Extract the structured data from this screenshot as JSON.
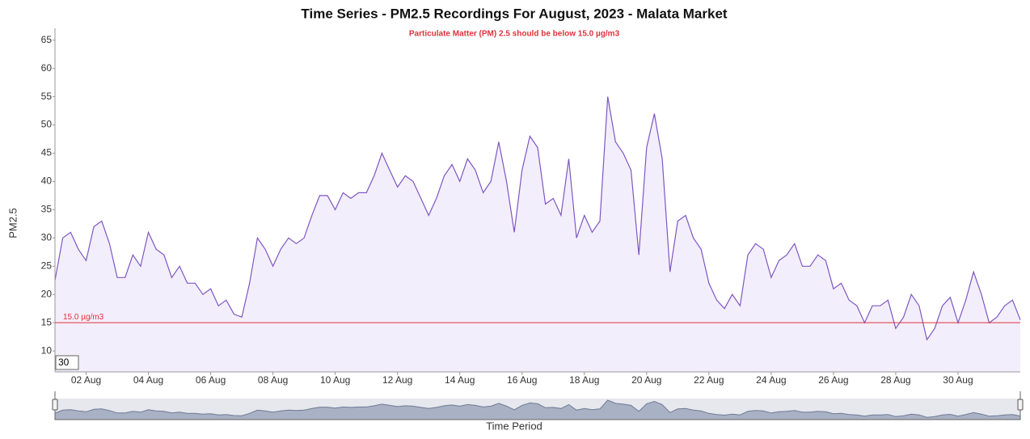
{
  "chart_data": {
    "type": "area",
    "title": "Time Series - PM2.5 Recordings For August, 2023 - Malata Market",
    "subtitle": "Particulate Matter (PM) 2.5 should be below 15.0 µg/m3",
    "y_label": "PM2.5",
    "x_label": "Time Period",
    "color": "#7e57c2",
    "fill": "#f3eefc",
    "x": [
      1,
      1.25,
      1.5,
      1.75,
      2,
      2.25,
      2.5,
      2.75,
      3,
      3.25,
      3.5,
      3.75,
      4,
      4.25,
      4.5,
      4.75,
      5,
      5.25,
      5.5,
      5.75,
      6,
      6.25,
      6.5,
      6.75,
      7,
      7.25,
      7.5,
      7.75,
      8,
      8.25,
      8.5,
      8.75,
      9,
      9.25,
      9.5,
      9.75,
      10,
      10.25,
      10.5,
      10.75,
      11,
      11.25,
      11.5,
      11.75,
      12,
      12.25,
      12.5,
      12.75,
      13,
      13.25,
      13.5,
      13.75,
      14,
      14.25,
      14.5,
      14.75,
      15,
      15.25,
      15.5,
      15.75,
      16,
      16.25,
      16.5,
      16.75,
      17,
      17.25,
      17.5,
      17.75,
      18,
      18.25,
      18.5,
      18.75,
      19,
      19.25,
      19.5,
      19.75,
      20,
      20.25,
      20.5,
      20.75,
      21,
      21.25,
      21.5,
      21.75,
      22,
      22.25,
      22.5,
      22.75,
      23,
      23.25,
      23.5,
      23.75,
      24,
      24.25,
      24.5,
      24.75,
      25,
      25.25,
      25.5,
      25.75,
      26,
      26.25,
      26.5,
      26.75,
      27,
      27.25,
      27.5,
      27.75,
      28,
      28.25,
      28.5,
      28.75,
      29,
      29.25,
      29.5,
      29.75,
      30,
      30.25,
      30.5,
      30.75,
      31,
      31.25,
      31.5,
      31.75,
      32
    ],
    "values": [
      22.5,
      30,
      31,
      28,
      26,
      32,
      33,
      29,
      23,
      23,
      27,
      25,
      31,
      28,
      27,
      23,
      25,
      22,
      22,
      20,
      21,
      18,
      19,
      16.5,
      16,
      22,
      30,
      28,
      25,
      28,
      30,
      29,
      30,
      34,
      37.5,
      37.5,
      35,
      38,
      37,
      38,
      38,
      41,
      45,
      42,
      39,
      41,
      40,
      37,
      34,
      37,
      41,
      43,
      40,
      44,
      42,
      38,
      40,
      47,
      40,
      31,
      42,
      48,
      46,
      36,
      37,
      34,
      44,
      30,
      34,
      31,
      33,
      55,
      47,
      45,
      42,
      27,
      46,
      52,
      44,
      24,
      33,
      34,
      30,
      28,
      22,
      19,
      17.5,
      20,
      18,
      27,
      29,
      28,
      23,
      26,
      27,
      29,
      25,
      25,
      27,
      26,
      21,
      22,
      19,
      18,
      15,
      18,
      18,
      19,
      14,
      16,
      20,
      18,
      12,
      14,
      18,
      19.5,
      15,
      19,
      24,
      20,
      15,
      16,
      18,
      19,
      15.5
    ],
    "xlim": [
      1,
      32
    ],
    "ylim": [
      6.3,
      67.1
    ],
    "xticks": [
      {
        "value": 2,
        "label": "02 Aug"
      },
      {
        "value": 4,
        "label": "04 Aug"
      },
      {
        "value": 6,
        "label": "06 Aug"
      },
      {
        "value": 8,
        "label": "08 Aug"
      },
      {
        "value": 10,
        "label": "10 Aug"
      },
      {
        "value": 12,
        "label": "12 Aug"
      },
      {
        "value": 14,
        "label": "14 Aug"
      },
      {
        "value": 16,
        "label": "16 Aug"
      },
      {
        "value": 18,
        "label": "18 Aug"
      },
      {
        "value": 20,
        "label": "20 Aug"
      },
      {
        "value": 22,
        "label": "22 Aug"
      },
      {
        "value": 24,
        "label": "24 Aug"
      },
      {
        "value": 26,
        "label": "26 Aug"
      },
      {
        "value": 28,
        "label": "28 Aug"
      },
      {
        "value": 30,
        "label": "30 Aug"
      }
    ],
    "yticks": [
      10,
      15,
      20,
      25,
      30,
      35,
      40,
      45,
      50,
      55,
      60,
      65
    ],
    "threshold": {
      "value": 15,
      "label": "15.0 µg/m3",
      "color": "#e0323c"
    },
    "range_box": "30"
  }
}
